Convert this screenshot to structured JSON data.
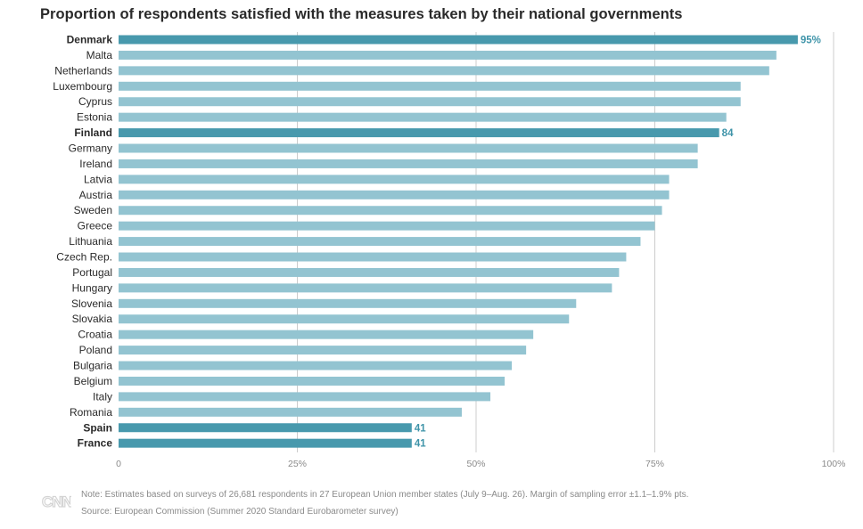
{
  "chart_data": {
    "type": "bar",
    "orientation": "horizontal",
    "title": "Proportion of respondents satisfied with the measures taken by their national governments",
    "categories": [
      "Denmark",
      "Malta",
      "Netherlands",
      "Luxembourg",
      "Cyprus",
      "Estonia",
      "Finland",
      "Germany",
      "Ireland",
      "Latvia",
      "Austria",
      "Sweden",
      "Greece",
      "Lithuania",
      "Czech Rep.",
      "Portugal",
      "Hungary",
      "Slovenia",
      "Slovakia",
      "Croatia",
      "Poland",
      "Bulgaria",
      "Belgium",
      "Italy",
      "Romania",
      "Spain",
      "France"
    ],
    "values": [
      95,
      92,
      91,
      87,
      87,
      85,
      84,
      81,
      81,
      77,
      77,
      76,
      75,
      73,
      71,
      70,
      69,
      64,
      63,
      58,
      57,
      55,
      54,
      52,
      48,
      41,
      41
    ],
    "highlighted": [
      "Denmark",
      "Finland",
      "Spain",
      "France"
    ],
    "data_labels": {
      "Denmark": "95%",
      "Finland": "84",
      "Spain": "41",
      "France": "41"
    },
    "xlim": [
      0,
      100
    ],
    "x_ticks": [
      0,
      25,
      50,
      75,
      100
    ],
    "x_tick_labels": [
      "0",
      "25%",
      "50%",
      "75%",
      "100%"
    ],
    "grid": true,
    "colors": {
      "bar": "#93c4d1",
      "highlight": "#4899ad",
      "grid": "#cccccc",
      "label_highlight": "#3f94a9"
    }
  },
  "footer": {
    "logo_text": "CNN",
    "note": "Note: Estimates based on surveys of 26,681 respondents in 27 European Union member states (July 9–Aug. 26). Margin of sampling error ±1.1–1.9% pts.",
    "source": "Source: European Commission (Summer 2020 Standard Eurobarometer survey)"
  }
}
